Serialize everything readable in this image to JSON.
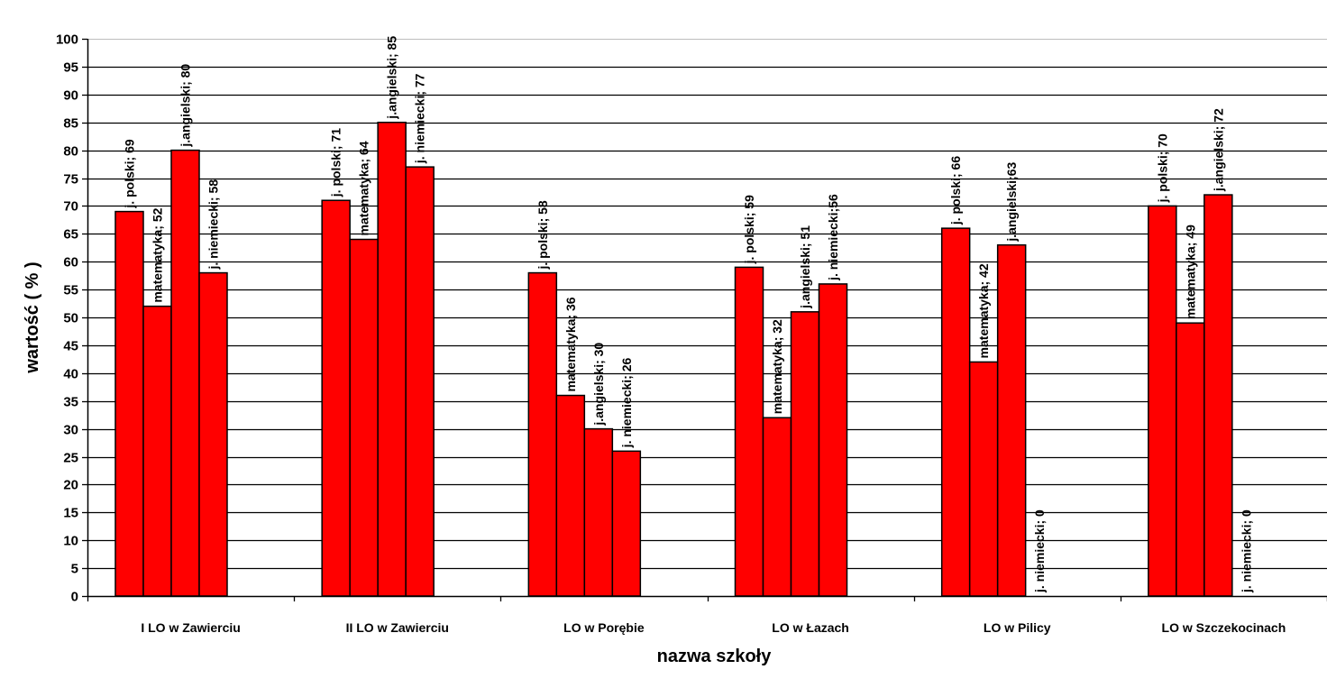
{
  "chart_data": {
    "type": "bar",
    "title": "",
    "xlabel": "nazwa szkoły",
    "ylabel": "wartość ( % )",
    "ylim": [
      0,
      100
    ],
    "ytick_step": 5,
    "grid": true,
    "categories": [
      "I LO w Zawierciu",
      "II LO w Zawierciu",
      "LO w Porębie",
      "LO w Łazach",
      "LO w Pilicy",
      "LO w Szczekocinach"
    ],
    "series": [
      {
        "name": "j. polski",
        "values": [
          69,
          71,
          58,
          59,
          66,
          70
        ]
      },
      {
        "name": "matematyka",
        "values": [
          52,
          64,
          36,
          32,
          42,
          49
        ]
      },
      {
        "name": "j.angielski",
        "values": [
          80,
          85,
          30,
          51,
          63,
          72
        ]
      },
      {
        "name": "j. niemiecki",
        "values": [
          58,
          77,
          26,
          56,
          0,
          0
        ]
      }
    ],
    "data_labels": [
      [
        "j. polski; 69",
        "matematyka; 52",
        "j.angielski; 80",
        "j. niemiecki; 58"
      ],
      [
        "j. polski; 71",
        "matematyka; 64",
        "j.angielski; 85",
        "j. niemiecki; 77"
      ],
      [
        "j. polski; 58",
        "matematyka; 36",
        "j.angielski; 30",
        "j. niemiecki; 26"
      ],
      [
        "j. polski; 59",
        "matematyka; 32",
        "j.angielski; 51",
        "j. niemiecki;56"
      ],
      [
        "j. polski; 66",
        "matematyka; 42",
        "j.angielski;63",
        "j. niemiecki; 0"
      ],
      [
        "j. polski; 70",
        "matematyka; 49",
        "j.angielski; 72",
        "j. niemiecki; 0"
      ]
    ],
    "bar_color": "#ff0000",
    "bar_stroke": "#000000",
    "grid_color": "#000000"
  }
}
